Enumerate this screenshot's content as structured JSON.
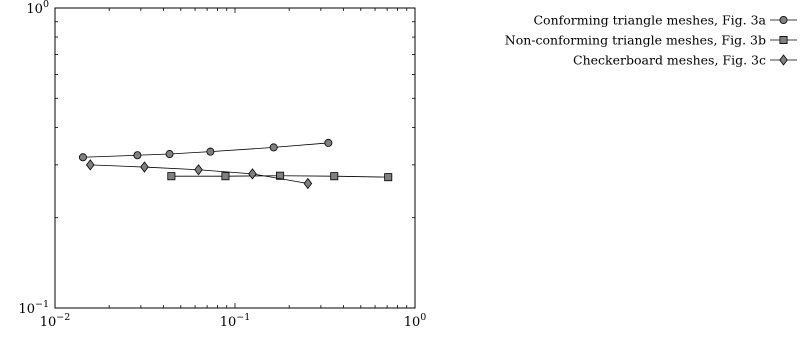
{
  "chart_data": {
    "type": "line",
    "title": "",
    "xlabel": "",
    "ylabel": "",
    "x_scale": "log",
    "y_scale": "log",
    "xlim": [
      0.01,
      1
    ],
    "ylim": [
      0.1,
      1
    ],
    "grid": false,
    "legend_position": "top-right, outside plot",
    "x_ticks": [
      {
        "value": 0.01,
        "base": "10",
        "exp": "−2"
      },
      {
        "value": 0.1,
        "base": "10",
        "exp": "−1"
      },
      {
        "value": 1,
        "base": "10",
        "exp": "0"
      }
    ],
    "y_ticks": [
      {
        "value": 0.1,
        "base": "10",
        "exp": "−1"
      },
      {
        "value": 1,
        "base": "10",
        "exp": "0"
      }
    ],
    "series": [
      {
        "name": "Conforming triangle meshes, Fig. 3a",
        "marker": "circle",
        "color": "#808080",
        "x": [
          0.0143,
          0.0287,
          0.0433,
          0.073,
          0.164,
          0.33
        ],
        "y": [
          0.318,
          0.323,
          0.326,
          0.332,
          0.343,
          0.355
        ]
      },
      {
        "name": "Non-conforming triangle meshes, Fig. 3b",
        "marker": "square",
        "color": "#808080",
        "x": [
          0.0443,
          0.0885,
          0.178,
          0.356,
          0.71
        ],
        "y": [
          0.275,
          0.275,
          0.276,
          0.275,
          0.273
        ]
      },
      {
        "name": "Checkerboard meshes, Fig. 3c",
        "marker": "diamond",
        "color": "#808080",
        "x": [
          0.0157,
          0.0314,
          0.0627,
          0.125,
          0.254
        ],
        "y": [
          0.3,
          0.295,
          0.289,
          0.28,
          0.26
        ]
      }
    ]
  }
}
